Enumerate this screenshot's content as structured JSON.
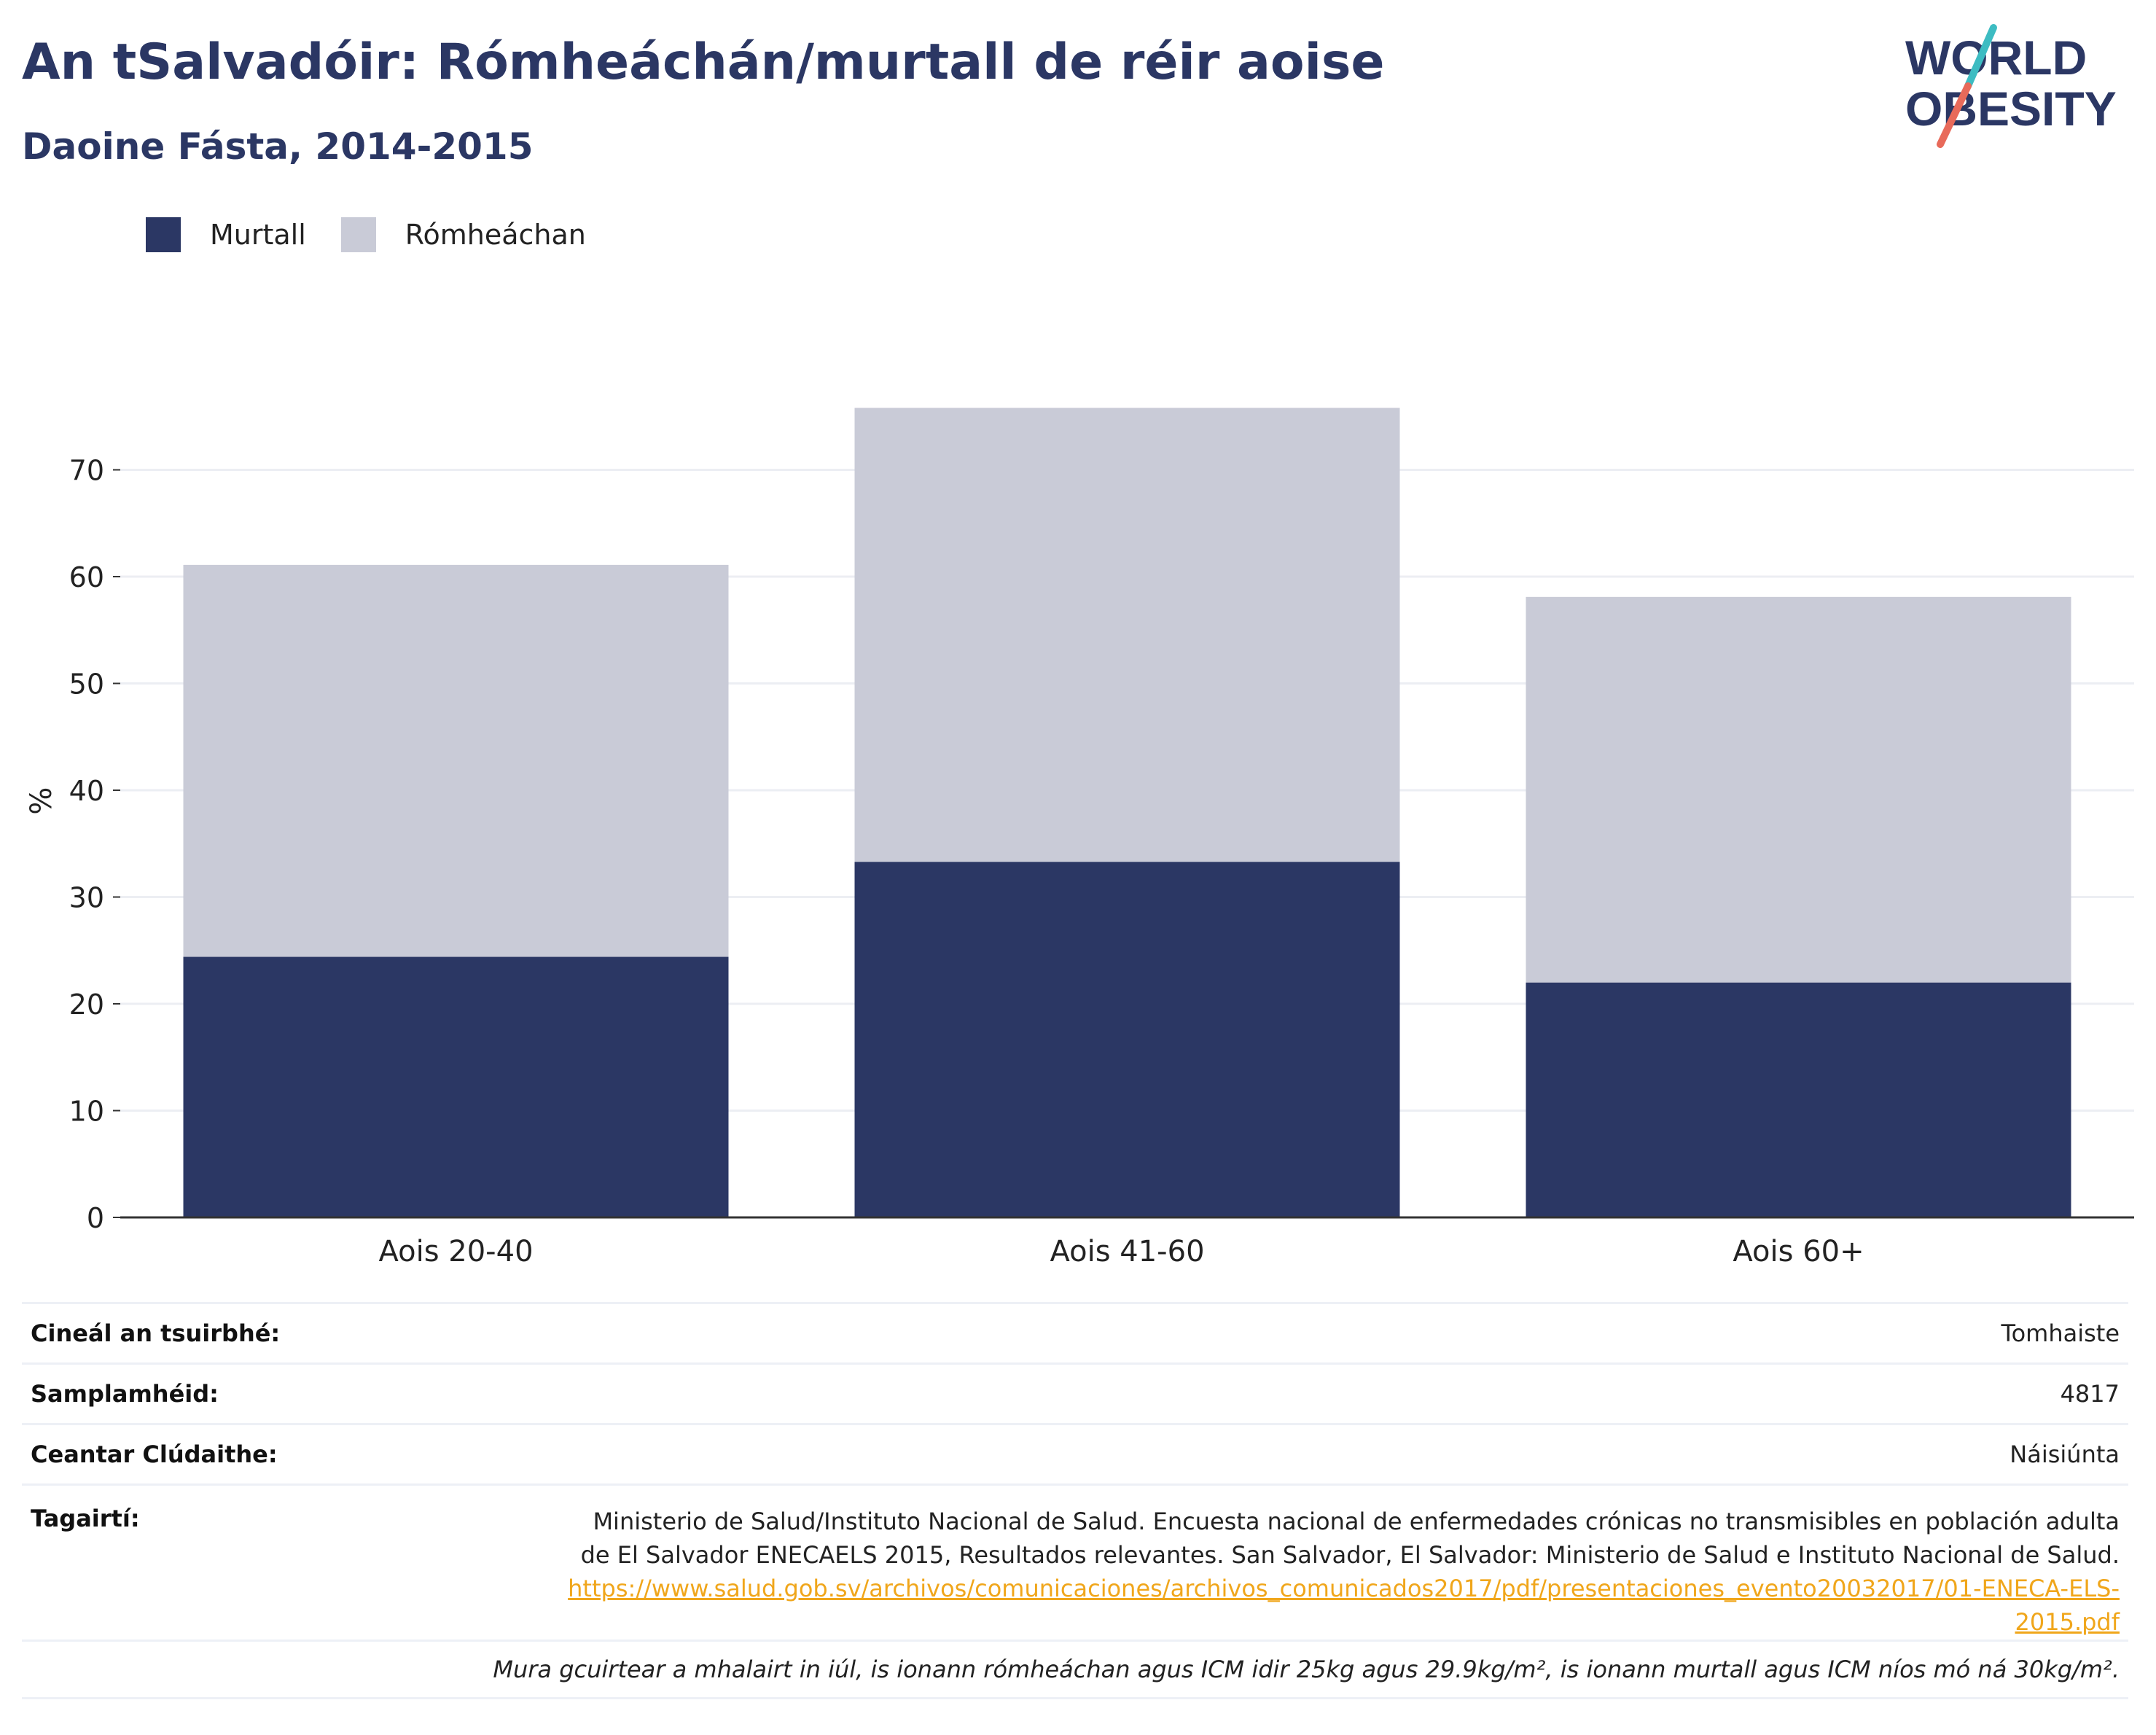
{
  "title": "An tSalvadóir: Rómheáchán/murtall de réir aoise",
  "subtitle": "Daoine Fásta, 2014-2015",
  "logo": {
    "line1": "WORLD",
    "line2": "OBESITY"
  },
  "colors": {
    "obesity": "#2b3764",
    "overweight": "#c9cbd7",
    "title": "#2b3764",
    "link": "#f0a61b",
    "slash_top": "#3dbcc2",
    "slash_bottom": "#e86a5a"
  },
  "legend": [
    {
      "label": "Murtall",
      "color": "#2b3764"
    },
    {
      "label": "Rómheáchan",
      "color": "#c9cbd7"
    }
  ],
  "chart_data": {
    "type": "bar",
    "stacked": true,
    "categories": [
      "Aois 20-40",
      "Aois 41-60",
      "Aois 60+"
    ],
    "series": [
      {
        "name": "Murtall",
        "values": [
          24.4,
          33.3,
          22.0
        ]
      },
      {
        "name": "Rómheáchan",
        "values": [
          36.7,
          42.5,
          36.1
        ]
      }
    ],
    "ylabel": "%",
    "xlabel": "",
    "ylim": [
      0,
      78
    ],
    "yticks": [
      0,
      10,
      20,
      30,
      40,
      50,
      60,
      70
    ],
    "grid": true,
    "legend_position": "top-left"
  },
  "meta": {
    "survey_type_label": "Cineál an tsuirbhé:",
    "survey_type_value": "Tomhaiste",
    "sample_size_label": "Samplamhéid:",
    "sample_size_value": "4817",
    "area_label": "Ceantar Clúdaithe:",
    "area_value": "Náisiúnta",
    "references_label": "Tagairtí:",
    "references_text": "Ministerio de Salud/Instituto Nacional de Salud. Encuesta nacional de enfermedades crónicas no transmisibles en población adulta de El Salvador ENECAELS 2015, Resultados relevantes. San Salvador, El Salvador: Ministerio de Salud e Instituto Nacional de Salud.",
    "references_url": "https://www.salud.gob.sv/archivos/comunicaciones/archivos_comunicados2017/pdf/presentaciones_evento20032017/01-ENECA-ELS-2015.pdf",
    "note": "Mura gcuirtear a mhalairt in iúl, is ionann rómheáchan agus ICM idir 25kg agus 29.9kg/m², is ionann murtall agus ICM níos mó ná 30kg/m²."
  }
}
